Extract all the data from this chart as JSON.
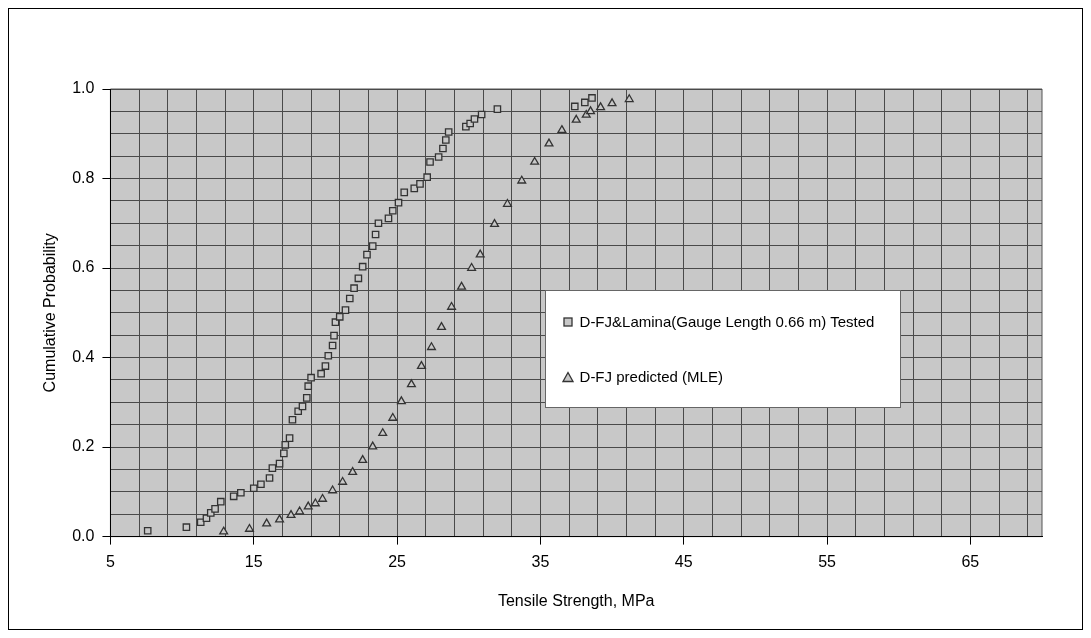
{
  "chart_data": {
    "type": "scatter",
    "xlabel": "Tensile Strength, MPa",
    "ylabel": "Cumulative Probability",
    "xlim": [
      5,
      70
    ],
    "xticks": [
      5,
      {
        "value": 7,
        "label": null
      },
      {
        "value": 9,
        "label": null
      },
      {
        "value": 11,
        "label": null
      },
      {
        "value": 13,
        "label": null
      },
      15,
      {
        "value": 17,
        "label": null
      },
      {
        "value": 19,
        "label": null
      },
      {
        "value": 21,
        "label": null
      },
      {
        "value": 23,
        "label": null
      },
      25,
      {
        "value": 27,
        "label": null
      },
      {
        "value": 29,
        "label": null
      },
      {
        "value": 31,
        "label": null
      },
      {
        "value": 33,
        "label": null
      },
      35,
      {
        "value": 37,
        "label": null
      },
      {
        "value": 39,
        "label": null
      },
      {
        "value": 41,
        "label": null
      },
      {
        "value": 43,
        "label": null
      },
      45,
      {
        "value": 47,
        "label": null
      },
      {
        "value": 49,
        "label": null
      },
      {
        "value": 51,
        "label": null
      },
      {
        "value": 53,
        "label": null
      },
      55,
      {
        "value": 57,
        "label": null
      },
      {
        "value": 59,
        "label": null
      },
      {
        "value": 61,
        "label": null
      },
      {
        "value": 63,
        "label": null
      },
      65,
      {
        "value": 67,
        "label": null
      },
      {
        "value": 69,
        "label": null
      }
    ],
    "ylim": [
      0,
      1
    ],
    "yticks": [
      {
        "value": 0,
        "label": "0.0"
      },
      {
        "value": 0.05,
        "label": null
      },
      {
        "value": 0.1,
        "label": null
      },
      {
        "value": 0.15,
        "label": null
      },
      0.2,
      {
        "value": 0.25,
        "label": null
      },
      {
        "value": 0.3,
        "label": null
      },
      {
        "value": 0.35,
        "label": null
      },
      0.4,
      {
        "value": 0.45,
        "label": null
      },
      {
        "value": 0.5,
        "label": null
      },
      {
        "value": 0.55,
        "label": null
      },
      0.6,
      {
        "value": 0.65,
        "label": null
      },
      {
        "value": 0.7,
        "label": null
      },
      {
        "value": 0.75,
        "label": null
      },
      0.8,
      {
        "value": 0.85,
        "label": null
      },
      {
        "value": 0.9,
        "label": null
      },
      {
        "value": 0.95,
        "label": null
      },
      {
        "value": 1,
        "label": "1.0"
      }
    ],
    "grid": true,
    "legend": "right",
    "series": [
      {
        "name": "D-FJ&Lamina(Gauge Length 0.66 m) Tested",
        "color": "#333333",
        "marker": "square",
        "x": [
          7.6,
          10.3,
          11.3,
          11.7,
          12.0,
          12.3,
          12.7,
          13.6,
          14.1,
          15.0,
          15.5,
          16.1,
          16.3,
          16.8,
          17.1,
          17.2,
          17.5,
          17.7,
          18.1,
          18.4,
          18.7,
          18.8,
          19.0,
          19.7,
          20.0,
          20.2,
          20.5,
          20.6,
          20.7,
          21.0,
          21.4,
          21.7,
          22.0,
          22.3,
          22.6,
          22.9,
          23.3,
          23.5,
          23.7,
          24.4,
          24.7,
          25.1,
          25.5,
          26.2,
          26.6,
          27.1,
          27.3,
          27.9,
          28.2,
          28.4,
          28.6,
          29.8,
          30.1,
          30.4,
          30.9,
          32.0,
          37.4,
          38.1,
          38.6
        ],
        "values": [
          0.013,
          0.021,
          0.032,
          0.041,
          0.053,
          0.062,
          0.078,
          0.09,
          0.098,
          0.108,
          0.117,
          0.131,
          0.153,
          0.163,
          0.186,
          0.205,
          0.22,
          0.261,
          0.28,
          0.291,
          0.31,
          0.336,
          0.355,
          0.364,
          0.381,
          0.404,
          0.427,
          0.449,
          0.479,
          0.491,
          0.506,
          0.532,
          0.555,
          0.577,
          0.603,
          0.63,
          0.649,
          0.675,
          0.7,
          0.711,
          0.728,
          0.746,
          0.769,
          0.778,
          0.788,
          0.803,
          0.837,
          0.848,
          0.867,
          0.886,
          0.904,
          0.916,
          0.923,
          0.933,
          0.943,
          0.955,
          0.961,
          0.97,
          0.98
        ]
      },
      {
        "name": "D-FJ predicted (MLE)",
        "color": "#333333",
        "marker": "triangle",
        "x": [
          12.9,
          14.7,
          15.9,
          16.8,
          17.6,
          18.2,
          18.8,
          19.3,
          19.8,
          20.5,
          21.2,
          21.9,
          22.6,
          23.3,
          24.0,
          24.7,
          25.3,
          26.0,
          26.7,
          27.4,
          28.1,
          28.8,
          29.5,
          30.2,
          30.8,
          31.8,
          32.7,
          33.7,
          34.6,
          35.6,
          36.5,
          37.5,
          38.2,
          38.5,
          39.2,
          40.0,
          41.2
        ],
        "values": [
          0.011,
          0.017,
          0.029,
          0.038,
          0.048,
          0.056,
          0.067,
          0.074,
          0.084,
          0.103,
          0.122,
          0.144,
          0.171,
          0.201,
          0.231,
          0.265,
          0.302,
          0.34,
          0.381,
          0.423,
          0.468,
          0.513,
          0.558,
          0.6,
          0.63,
          0.698,
          0.743,
          0.795,
          0.837,
          0.878,
          0.908,
          0.931,
          0.942,
          0.95,
          0.959,
          0.968,
          0.977
        ]
      }
    ]
  }
}
